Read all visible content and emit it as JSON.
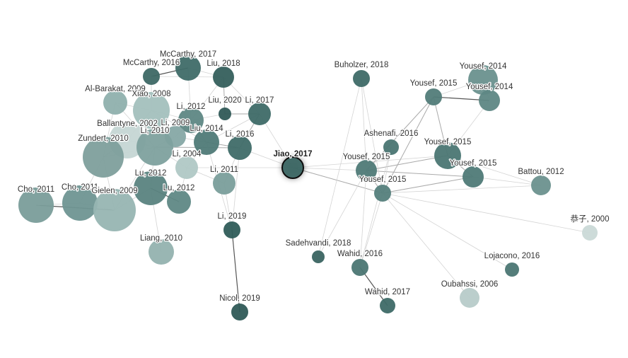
{
  "nodes": [
    {
      "label": "McCarthy, 2017"
    },
    {
      "label": "McCarthy, 2016"
    },
    {
      "label": "Liu, 2018"
    },
    {
      "label": "Al-Barakat, 2009"
    },
    {
      "label": "Xiao, 2008"
    },
    {
      "label": "Liu, 2020"
    },
    {
      "label": "Li, 2017"
    },
    {
      "label": "Li, 2012"
    },
    {
      "label": "Li, 2009"
    },
    {
      "label": "Ballantyne, 2002"
    },
    {
      "label": "Li, 2010"
    },
    {
      "label": "Liu, 2014"
    },
    {
      "label": "Li, 2016"
    },
    {
      "label": "Zundert, 2010"
    },
    {
      "label": "Li, 2004"
    },
    {
      "label": "Jiao, 2017"
    },
    {
      "label": "Li, 2011"
    },
    {
      "label": "Lu, 2012"
    },
    {
      "label": "Lu, 2012"
    },
    {
      "label": "Cho, 2011"
    },
    {
      "label": "Cho, 2011"
    },
    {
      "label": "Gielen, 2009"
    },
    {
      "label": "Li, 2019"
    },
    {
      "label": "Liang, 2010"
    },
    {
      "label": "Nicol, 2019"
    },
    {
      "label": "Buholzer, 2018"
    },
    {
      "label": "Yousef, 2014"
    },
    {
      "label": "Yousef, 2015"
    },
    {
      "label": "Yousef, 2014"
    },
    {
      "label": "Ashenafi, 2016"
    },
    {
      "label": "Yousef, 2015"
    },
    {
      "label": "Yousef, 2015"
    },
    {
      "label": "Yousef, 2015"
    },
    {
      "label": "Battou, 2012"
    },
    {
      "label": "Yousef, 2015"
    },
    {
      "label": "恭子, 2000"
    },
    {
      "label": "Sadehvandi, 2018"
    },
    {
      "label": "Wahid, 2016"
    },
    {
      "label": "Lojacono, 2016"
    },
    {
      "label": "Wahid, 2017"
    },
    {
      "label": "Oubahssi, 2006"
    }
  ]
}
